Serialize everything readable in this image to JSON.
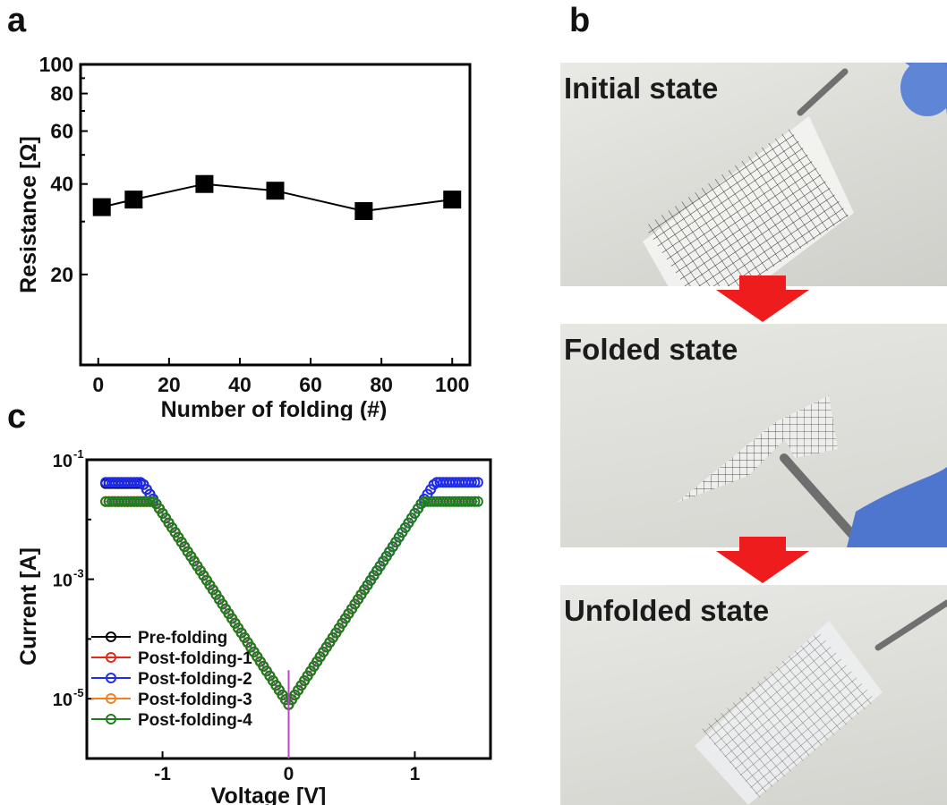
{
  "panel_a": {
    "letter": "a"
  },
  "panel_b": {
    "letter": "b",
    "photos": [
      {
        "label": "Initial state"
      },
      {
        "label": "Folded state"
      },
      {
        "label": "Unfolded state"
      }
    ],
    "arrow_color": "#ee1c1c"
  },
  "panel_c": {
    "letter": "c"
  },
  "chart_data": [
    {
      "panel": "a",
      "type": "line",
      "xlabel": "Number of folding (#)",
      "ylabel": "Resistance [Ω]",
      "xlim": [
        -5,
        105
      ],
      "ylim": [
        10,
        100
      ],
      "yscale": "log",
      "xticks": [
        "0",
        "20",
        "40",
        "60",
        "80",
        "100"
      ],
      "yticks": [
        "20",
        "40",
        "60",
        "80",
        "100"
      ],
      "marker": "filled-square",
      "color": "#000000",
      "x": [
        1,
        10,
        30,
        50,
        75,
        100
      ],
      "y": [
        33.5,
        35.5,
        40,
        38,
        32.5,
        35.5
      ]
    },
    {
      "panel": "c",
      "type": "scatter",
      "xlabel": "Voltage [V]",
      "ylabel": "Current [A]",
      "xlim": [
        -1.6,
        1.6
      ],
      "ylim": [
        1e-06,
        0.1
      ],
      "yscale": "log",
      "xticks": [
        "-1",
        "0",
        "1"
      ],
      "yticks": [
        "10",
        "10",
        "10"
      ],
      "ytick_exponents": [
        "-5",
        "-3",
        "-1"
      ],
      "legend_position": "bottom-left",
      "marker": "open-circle",
      "series": [
        {
          "name": "Pre-folding",
          "color": "#000000",
          "plateau": 0.04,
          "x_max": 0.87,
          "notes": ""
        },
        {
          "name": "Post-folding-1",
          "color": "#e8261a",
          "plateau": 0.02,
          "x_max": 0.7
        },
        {
          "name": "Post-folding-2",
          "color": "#1f2de8",
          "plateau": 0.042,
          "x_max": 1.5
        },
        {
          "name": "Post-folding-3",
          "color": "#f28020",
          "plateau": 0.02,
          "x_max": 0.62
        },
        {
          "name": "Post-folding-4",
          "color": "#c040c8",
          "plateau": 0.02,
          "x_max": 1.5,
          "line_only": true
        },
        {
          "name": "",
          "color": "#1e7d1e",
          "plateau": 0.02,
          "x_max": 1.5
        }
      ],
      "legend": [
        {
          "label": "Pre-folding",
          "color": "#000000"
        },
        {
          "label": "Post-folding-1",
          "color": "#e8261a"
        },
        {
          "label": "Post-folding-2",
          "color": "#1f2de8"
        },
        {
          "label": "Post-folding-3",
          "color": "#f28020"
        },
        {
          "label": "Post-folding-4",
          "color": "#1e7d1e"
        }
      ]
    }
  ]
}
